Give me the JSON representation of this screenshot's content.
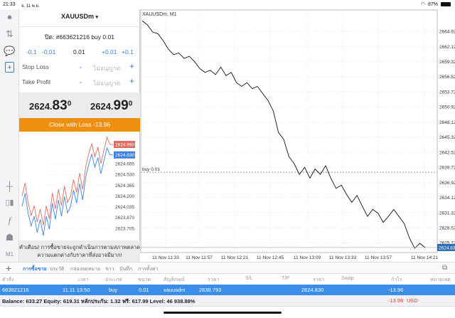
{
  "status": {
    "time": "21:33",
    "date": "จ. 11 พ.ย.",
    "battery": "87%"
  },
  "rail": {
    "icons": [
      "account-icon",
      "trade-arrows-icon",
      "chat-icon",
      "new-order-icon",
      "crosshair-icon",
      "candles-icon",
      "function-icon",
      "objects-icon"
    ],
    "timeframe": "M1"
  },
  "panel": {
    "symbol": "XAUUSDm",
    "symbol_caret": "▾",
    "order_title": "ปิด: #663621216 buy 0.01",
    "steps": [
      "-0.1",
      "-0.01",
      "0.01",
      "+0.01",
      "+0.1"
    ],
    "stop_loss": {
      "label": "Stop Loss",
      "minus": "-",
      "value": "ไม่อนุญาต",
      "plus": "+"
    },
    "take_profit": {
      "label": "Take Profit",
      "minus": "-",
      "value": "ไม่อนุญาต",
      "plus": "+"
    },
    "bid": {
      "main": "2624.",
      "big": "83",
      "sup": "0"
    },
    "ask": {
      "main": "2624.",
      "big": "99",
      "sup": "0"
    },
    "close_button": "Close with Loss -13.96",
    "warning_line1": "คำเตือน! การซื้อขายจะถูกดำเนินการตามสภาพตลาด",
    "warning_line2": "ความแตกต่างกับราคาที่ส่งอาจมีมาก!"
  },
  "colors": {
    "bid": "#3b82e0",
    "ask": "#e06a60",
    "accent": "#ef8f12",
    "selected_row": "#3b8ee8",
    "loss": "#e03a2f"
  },
  "chart_data": [
    {
      "type": "line",
      "title": "XAUUSDm, M1",
      "series": [
        {
          "values": [
            2666.9,
            2666.1,
            2664.8,
            2664.5,
            2663.2,
            2661.6,
            2660.6,
            2660.9,
            2659.9,
            2660.3,
            2659.3,
            2658.0,
            2657.3,
            2657.7,
            2656.9,
            2658.3,
            2656.7,
            2657.3,
            2655.4,
            2654.7,
            2655.4,
            2654.3,
            2654.7,
            2653.4,
            2652.1,
            2650.2,
            2646.2,
            2644.9,
            2641.7,
            2640.4,
            2638.4,
            2639.7,
            2637.7,
            2639.4,
            2638.4,
            2640.0,
            2637.7,
            2635.8,
            2636.4,
            2634.7,
            2633.2,
            2634.5,
            2632.5,
            2630.6,
            2631.9,
            2631.2,
            2629.5,
            2630.6,
            2631.9,
            2630.6,
            2629.3,
            2626.6,
            2624.7,
            2625.6,
            2624.83
          ]
        }
      ],
      "x_ticks": [
        "11 Nov 11:33",
        "11 Nov 11:57",
        "11 Nov 12:21",
        "11 Nov 12:45",
        "11 Nov 13:09",
        "11 Nov 13:33",
        "11 Nov 13:57",
        "11 Nov 14:21"
      ],
      "y_ticks": [
        "2664.920",
        "2662.120",
        "2659.320",
        "2656.520",
        "2653.720",
        "2650.920",
        "2648.120",
        "2645.320",
        "2642.520",
        "2639.720",
        "2636.920",
        "2634.120",
        "2631.320",
        "2628.520",
        "2625.720"
      ],
      "ylim": [
        2623.9,
        2667.7
      ],
      "order_line": {
        "label": "buy 0.01",
        "price": 2638.793
      },
      "current_price": "2624.830",
      "grid": true
    },
    {
      "type": "line",
      "series": [
        {
          "name": "ask",
          "values": [
            2624.2,
            2624.4,
            2624.1,
            2623.9,
            2624.05,
            2623.8,
            2624.0,
            2623.75,
            2624.05,
            2623.85,
            2624.25,
            2624.0,
            2624.3,
            2624.05,
            2624.35,
            2624.1,
            2624.2,
            2624.45,
            2624.25,
            2624.55,
            2624.3,
            2624.65,
            2624.85,
            2625.0,
            2624.8,
            2624.95,
            2624.7,
            2624.9,
            2625.1,
            2624.99,
            2624.99
          ]
        },
        {
          "name": "bid",
          "values": [
            2624.04,
            2624.24,
            2623.94,
            2623.74,
            2623.89,
            2623.64,
            2623.84,
            2623.59,
            2623.89,
            2623.69,
            2624.09,
            2623.84,
            2624.14,
            2623.89,
            2624.19,
            2623.94,
            2624.04,
            2624.29,
            2624.09,
            2624.39,
            2624.14,
            2624.49,
            2624.69,
            2624.84,
            2624.64,
            2624.79,
            2624.54,
            2624.74,
            2624.94,
            2624.83,
            2624.83
          ]
        }
      ],
      "y_ticks": [
        "2624.695",
        "2624.530",
        "2624.365",
        "2624.200",
        "2624.035",
        "2623.870",
        "2623.705"
      ],
      "ylim": [
        2623.55,
        2625.1
      ],
      "ask_label": "2624.990",
      "bid_label": "2624.830"
    }
  ],
  "tabs": {
    "add": "+",
    "items": [
      "การซื้อขาย",
      "ประวัติ",
      "กล่องจดหมาย",
      "ข่าว",
      "บันทึก",
      "การตั้งค่า"
    ]
  },
  "table": {
    "headers": [
      "คำสั่ง",
      "เวลา",
      "ประเภท",
      "ขนาด",
      "สัญลักษณ์",
      "ราคา",
      "S/L",
      "T/P",
      "ราคา",
      "Swap",
      "กำไร",
      "หมายเหตุ"
    ],
    "rows": [
      [
        "663621216",
        "11.11 13:50",
        "buy",
        "0.01",
        "xauusdm",
        "2638.793",
        "",
        "",
        "2624.830",
        "",
        "-13.96",
        ""
      ]
    ]
  },
  "balance": {
    "text": "Balance: 633.27 Equity: 619.31 หลักประกัน: 1.32 ฟรี: 617.99 Level: 46 938.88%",
    "profit": "-13.96",
    "currency": "USD"
  }
}
